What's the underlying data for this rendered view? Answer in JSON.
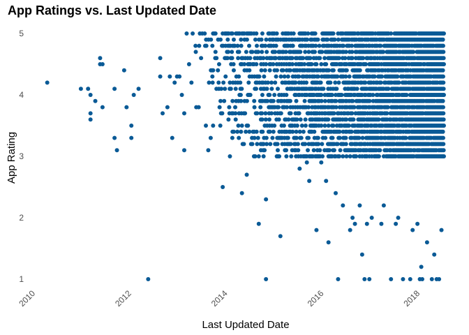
{
  "chart_data": {
    "type": "scatter",
    "title": "App Ratings vs. Last Updated Date",
    "xlabel": "Last Updated Date",
    "ylabel": "App Rating",
    "x_unit": "year",
    "xlim": [
      2010,
      2018.55
    ],
    "ylim": [
      1,
      5
    ],
    "x_ticks": [
      {
        "value": 2010,
        "label": "2010"
      },
      {
        "value": 2012,
        "label": "2012"
      },
      {
        "value": 2014,
        "label": "2014"
      },
      {
        "value": 2016,
        "label": "2016"
      },
      {
        "value": 2018,
        "label": "2018"
      }
    ],
    "y_ticks": [
      {
        "value": 1,
        "label": "1"
      },
      {
        "value": 2,
        "label": "2"
      },
      {
        "value": 3,
        "label": "3"
      },
      {
        "value": 4,
        "label": "4"
      },
      {
        "value": 5,
        "label": "5"
      }
    ],
    "grid": false,
    "legend": "none",
    "point_color": "#0a5a96",
    "points": [
      [
        2010.3,
        4.2
      ],
      [
        2011.0,
        4.1
      ],
      [
        2011.15,
        4.1
      ],
      [
        2011.2,
        4.0
      ],
      [
        2011.2,
        3.7
      ],
      [
        2011.2,
        3.6
      ],
      [
        2011.3,
        3.9
      ],
      [
        2011.4,
        4.6
      ],
      [
        2011.4,
        4.5
      ],
      [
        2011.45,
        4.5
      ],
      [
        2011.45,
        3.8
      ],
      [
        2011.7,
        4.1
      ],
      [
        2011.7,
        3.3
      ],
      [
        2011.75,
        3.1
      ],
      [
        2011.9,
        4.4
      ],
      [
        2011.95,
        3.8
      ],
      [
        2012.05,
        3.5
      ],
      [
        2012.05,
        3.3
      ],
      [
        2012.1,
        4.0
      ],
      [
        2012.2,
        4.1
      ],
      [
        2012.4,
        1.0
      ],
      [
        2012.65,
        4.6
      ],
      [
        2012.65,
        4.3
      ],
      [
        2012.7,
        3.7
      ],
      [
        2012.8,
        3.8
      ],
      [
        2012.85,
        4.3
      ],
      [
        2012.9,
        3.3
      ],
      [
        2012.95,
        4.2
      ],
      [
        2013.0,
        4.3
      ],
      [
        2013.05,
        4.3
      ],
      [
        2013.1,
        4.0
      ],
      [
        2013.15,
        3.7
      ],
      [
        2013.15,
        3.1
      ],
      [
        2013.25,
        4.5
      ],
      [
        2013.3,
        4.2
      ],
      [
        2013.4,
        3.8
      ],
      [
        2013.45,
        3.8
      ],
      [
        2013.5,
        4.6
      ],
      [
        2013.6,
        3.5
      ],
      [
        2013.65,
        3.1
      ],
      [
        2013.7,
        3.3
      ],
      [
        2013.75,
        3.5
      ],
      [
        2013.75,
        4.4
      ],
      [
        2013.8,
        4.7
      ],
      [
        2013.85,
        4.4
      ],
      [
        2013.9,
        3.5
      ],
      [
        2013.95,
        2.5
      ],
      [
        2013.95,
        5.0
      ],
      [
        2014.0,
        5.0
      ],
      [
        2014.05,
        4.6
      ],
      [
        2014.1,
        4.2
      ],
      [
        2014.1,
        3.0
      ],
      [
        2014.15,
        3.3
      ],
      [
        2014.2,
        4.8
      ],
      [
        2014.3,
        5.0
      ],
      [
        2014.35,
        2.4
      ],
      [
        2014.45,
        2.7
      ],
      [
        2014.5,
        4.8
      ],
      [
        2014.55,
        5.0
      ],
      [
        2014.6,
        4.5
      ],
      [
        2014.6,
        3.0
      ],
      [
        2014.7,
        1.9
      ],
      [
        2014.8,
        3.2
      ],
      [
        2014.85,
        2.3
      ],
      [
        2014.85,
        1.0
      ],
      [
        2014.9,
        5.0
      ],
      [
        2014.95,
        3.9
      ],
      [
        2015.05,
        4.6
      ],
      [
        2015.15,
        1.7
      ],
      [
        2015.2,
        3.8
      ],
      [
        2015.25,
        5.0
      ],
      [
        2015.4,
        4.8
      ],
      [
        2015.55,
        2.8
      ],
      [
        2015.6,
        5.0
      ],
      [
        2015.7,
        2.9
      ],
      [
        2015.75,
        2.6
      ],
      [
        2015.85,
        3.5
      ],
      [
        2015.9,
        1.8
      ],
      [
        2016.0,
        2.9
      ],
      [
        2016.1,
        2.6
      ],
      [
        2016.15,
        1.6
      ],
      [
        2016.3,
        2.4
      ],
      [
        2016.35,
        1.0
      ],
      [
        2016.45,
        2.2
      ],
      [
        2016.6,
        1.8
      ],
      [
        2016.65,
        2.0
      ],
      [
        2016.7,
        1.9
      ],
      [
        2016.8,
        2.2
      ],
      [
        2016.85,
        1.4
      ],
      [
        2016.9,
        1.0
      ],
      [
        2016.95,
        1.9
      ],
      [
        2017.0,
        1.0
      ],
      [
        2017.05,
        2.0
      ],
      [
        2017.25,
        1.9
      ],
      [
        2017.3,
        2.2
      ],
      [
        2017.45,
        1.0
      ],
      [
        2017.55,
        1.9
      ],
      [
        2017.6,
        2.0
      ],
      [
        2017.7,
        1.0
      ],
      [
        2017.85,
        1.0
      ],
      [
        2017.9,
        1.8
      ],
      [
        2018.0,
        1.9
      ],
      [
        2018.05,
        1.0
      ],
      [
        2018.08,
        1.2
      ],
      [
        2018.1,
        1.0
      ],
      [
        2018.2,
        1.6
      ],
      [
        2018.3,
        1.0
      ],
      [
        2018.35,
        1.4
      ],
      [
        2018.4,
        1.0
      ],
      [
        2018.45,
        1.0
      ],
      [
        2018.5,
        1.8
      ]
    ],
    "dense_region": {
      "x_range": [
        2013.2,
        2018.55
      ],
      "y_values": [
        3.0,
        3.1,
        3.2,
        3.3,
        3.4,
        3.5,
        3.6,
        3.7,
        3.8,
        3.9,
        4.0,
        4.1,
        4.2,
        4.3,
        4.4,
        4.5,
        4.6,
        4.7,
        4.8,
        4.9,
        5.0
      ],
      "density_increases_with_x": true
    }
  }
}
